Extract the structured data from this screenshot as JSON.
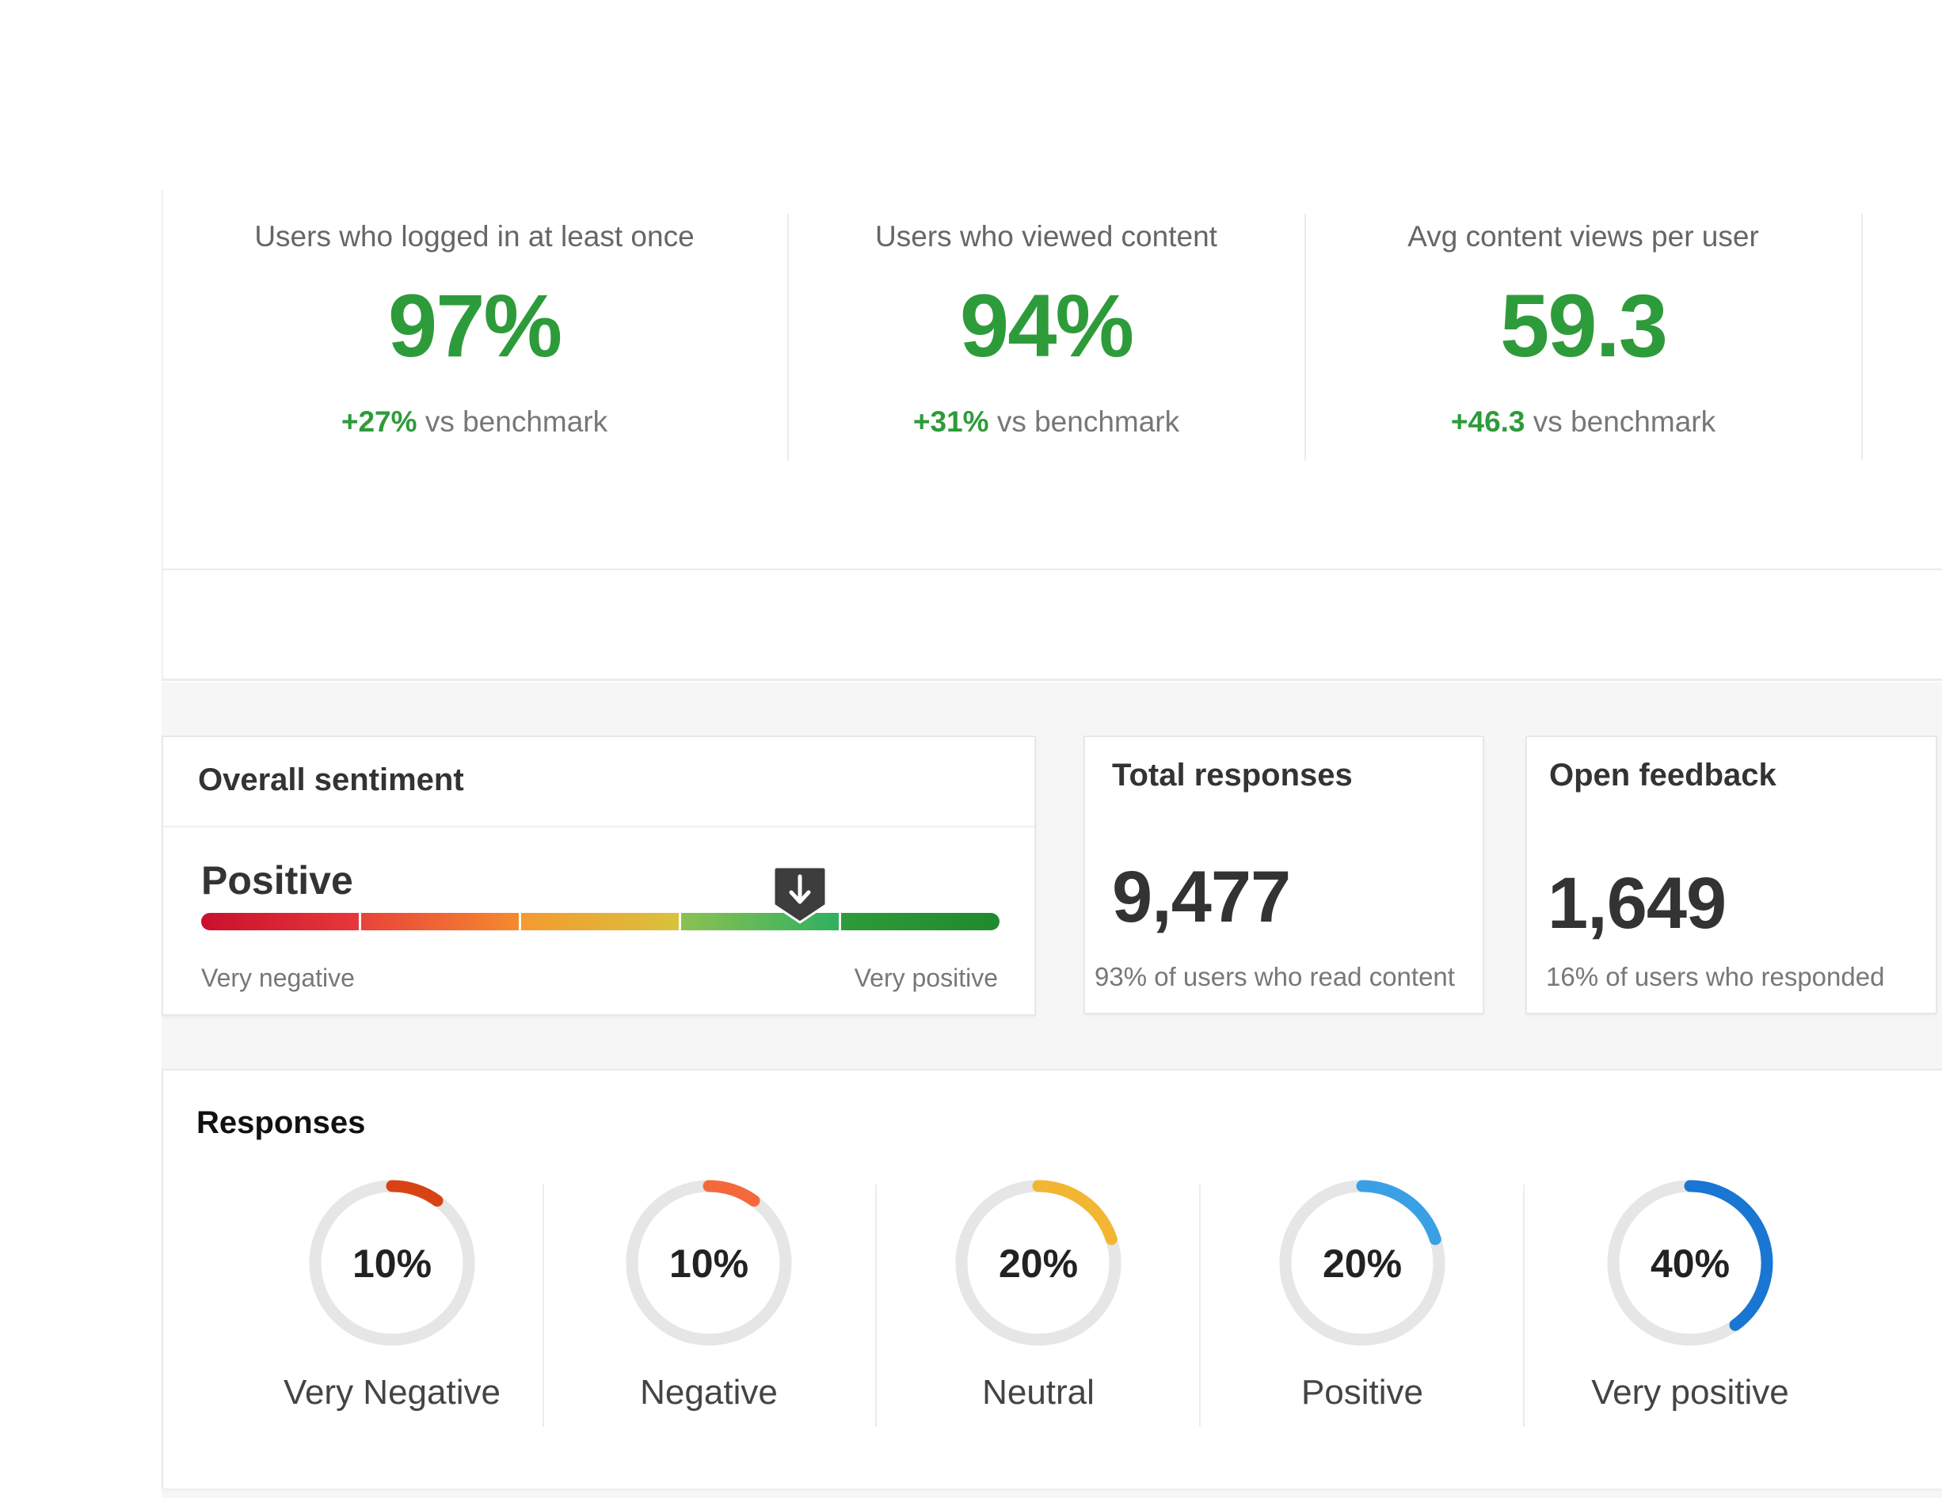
{
  "kpis": [
    {
      "title": "Users who logged in at least once",
      "value": "97%",
      "delta": "+27%",
      "suffix": "vs benchmark"
    },
    {
      "title": "Users who viewed content",
      "value": "94%",
      "delta": "+31%",
      "suffix": "vs benchmark"
    },
    {
      "title": "Avg content views per user",
      "value": "59.3",
      "delta": "+46.3",
      "suffix": "vs benchmark"
    }
  ],
  "sentiment": {
    "title": "Overall sentiment",
    "value_label": "Positive",
    "marker_position": 0.75,
    "min_label": "Very negative",
    "max_label": "Very positive",
    "marker_icon": "arrow-down-icon"
  },
  "total_responses": {
    "title": "Total responses",
    "value": "9,477",
    "sub": "93% of users who read content"
  },
  "open_feedback": {
    "title": "Open feedback",
    "value": "1,649",
    "sub": "16% of users who responded"
  },
  "responses": {
    "title": "Responses",
    "items": [
      {
        "label": "Very Negative",
        "pct_text": "10%",
        "pct": 10,
        "color": "#d84315"
      },
      {
        "label": "Negative",
        "pct_text": "10%",
        "pct": 10,
        "color": "#f4683c"
      },
      {
        "label": "Neutral",
        "pct_text": "20%",
        "pct": 20,
        "color": "#f2b632"
      },
      {
        "label": "Positive",
        "pct_text": "20%",
        "pct": 20,
        "color": "#3aa0e6"
      },
      {
        "label": "Very positive",
        "pct_text": "40%",
        "pct": 40,
        "color": "#1976d2"
      }
    ]
  },
  "colors": {
    "accent_green": "#2e9b3a"
  }
}
